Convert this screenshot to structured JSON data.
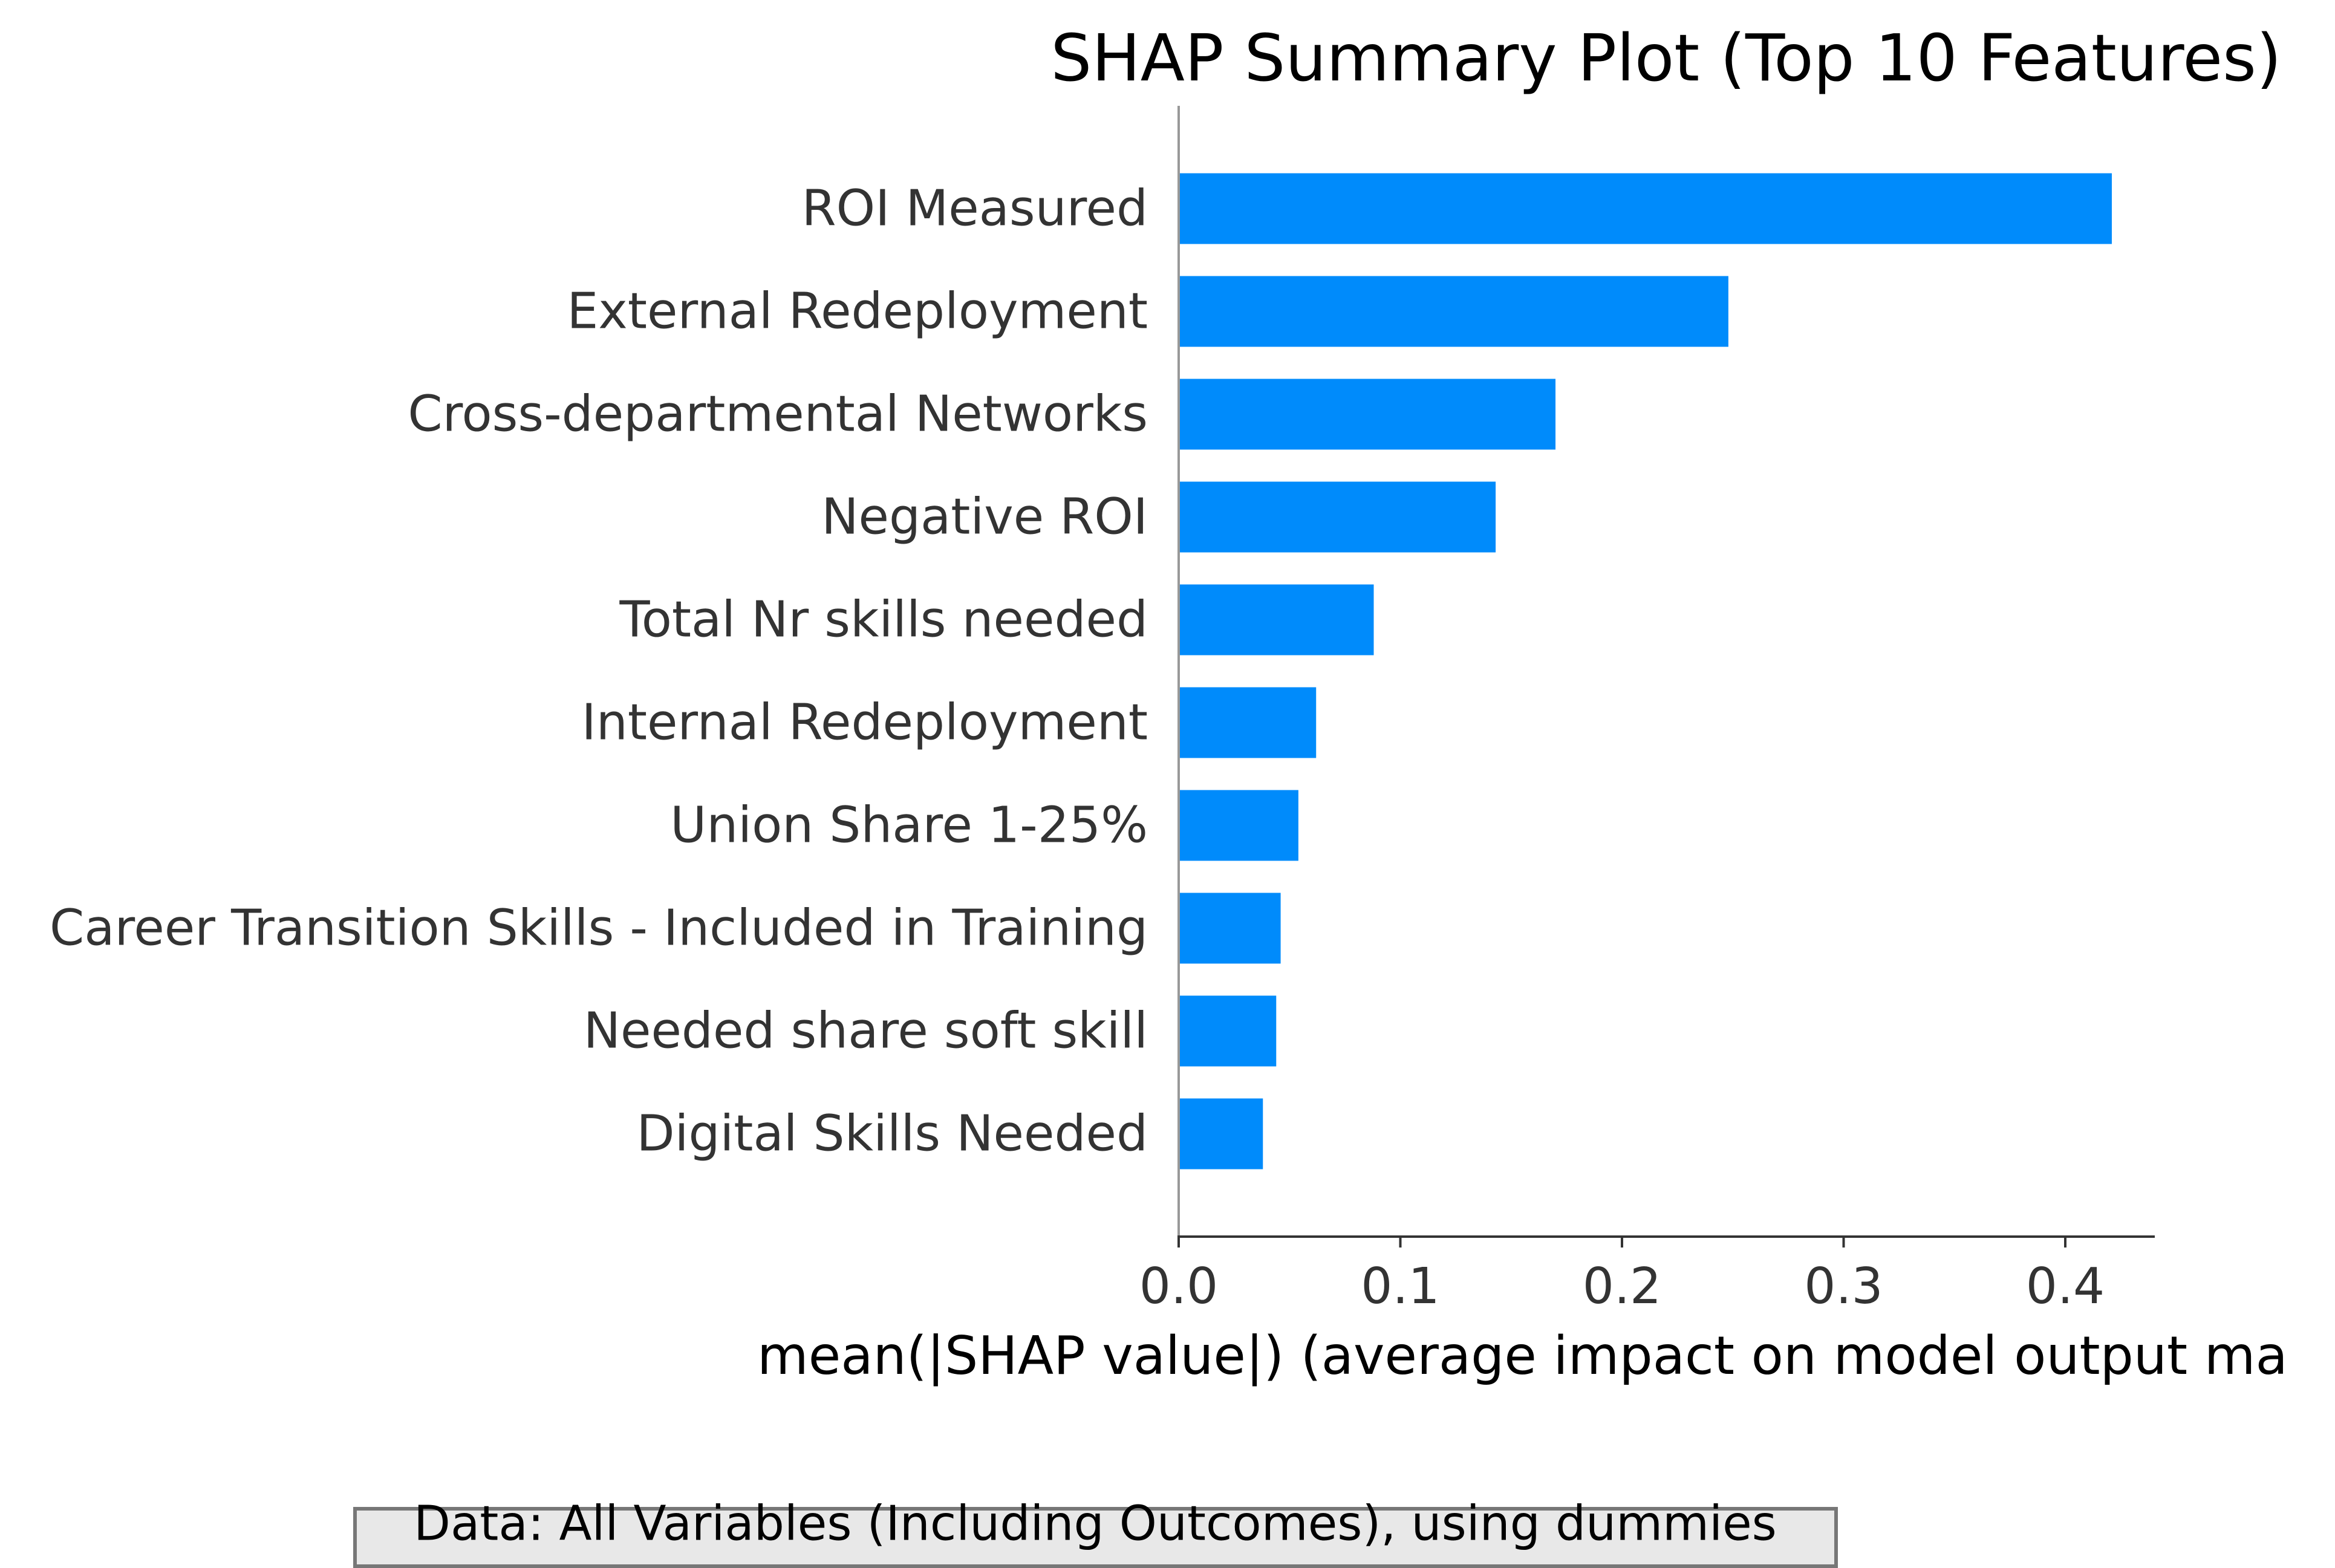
{
  "colors": {
    "bar": "#008bfb",
    "axis": "#333333",
    "left_spine": "#999999",
    "note_fill": "#e8e8e8",
    "note_border": "#777777"
  },
  "chart_data": {
    "type": "bar",
    "orientation": "horizontal",
    "title": "SHAP Summary Plot (Top 10 Features)",
    "xlabel": "mean(|SHAP value|) (average impact on model output ma",
    "ylabel": "",
    "xlim": [
      0.0,
      0.44
    ],
    "xticks": [
      0.0,
      0.1,
      0.2,
      0.3,
      0.4
    ],
    "xtick_labels": [
      "0.0",
      "0.1",
      "0.2",
      "0.3",
      "0.4"
    ],
    "grid": false,
    "categories": [
      "ROI Measured",
      "External Redeployment",
      "Cross-departmental Networks",
      "Negative ROI",
      "Total Nr skills needed",
      "Internal Redeployment",
      "Union Share 1-25%",
      "Career Transition Skills - Included in Training",
      "Needed share soft skill",
      "Digital Skills Needed"
    ],
    "values": [
      0.421,
      0.248,
      0.17,
      0.143,
      0.088,
      0.062,
      0.054,
      0.046,
      0.044,
      0.038
    ]
  },
  "annotation": {
    "note": "Data: All Variables (Including Outcomes), using dummies"
  }
}
